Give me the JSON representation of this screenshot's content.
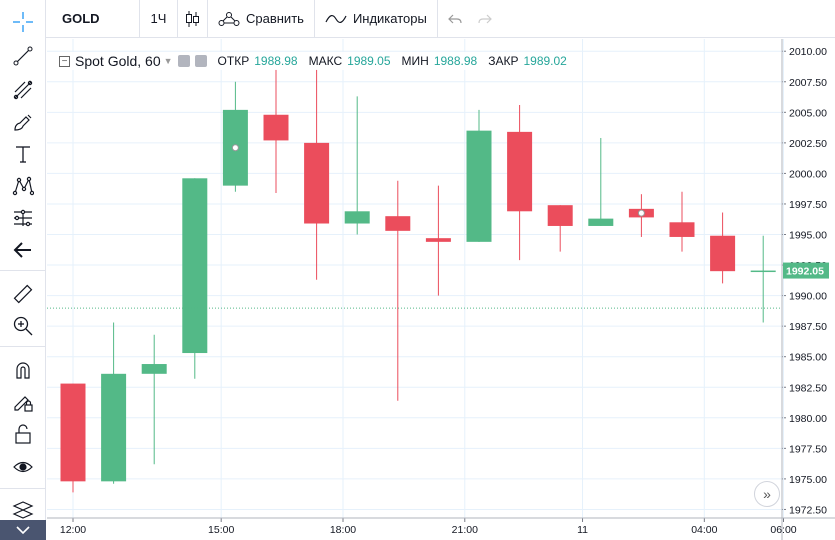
{
  "toolbar": {
    "symbol": "GOLD",
    "resolution": "1Ч",
    "compare_label": "Сравнить",
    "indicators_label": "Индикаторы"
  },
  "legend": {
    "title": "Spot Gold, 60",
    "open_label": "ОТКР",
    "open_value": "1988.98",
    "high_label": "МАКС",
    "high_value": "1989.05",
    "low_label": "МИН",
    "low_value": "1988.98",
    "close_label": "ЗАКР",
    "close_value": "1989.02"
  },
  "sidebar": {
    "icons": [
      "crosshair-icon",
      "trendline-icon",
      "fib-icon",
      "brush-icon",
      "text-icon",
      "pattern-icon",
      "prediction-icon",
      "back-arrow-icon",
      "ruler-icon",
      "zoom-in-icon",
      "magnet-icon",
      "lock-drawing-icon",
      "lock-icon",
      "eye-icon",
      "layers-icon"
    ]
  },
  "colors": {
    "up": "#53b987",
    "down": "#eb4d5c",
    "grid": "#e6f1fb",
    "price_label": "#53b987"
  },
  "current_price": "1992.05",
  "chart_data": {
    "type": "candlestick",
    "x_labels": [
      "12:00",
      "15:00",
      "18:00",
      "21:00",
      "11",
      "04:00",
      "06:00"
    ],
    "y_ticks": [
      "2010.00",
      "2007.50",
      "2005.00",
      "2002.50",
      "2000.00",
      "1997.50",
      "1995.00",
      "1992.50",
      "1990.00",
      "1987.50",
      "1985.00",
      "1982.50",
      "1980.00",
      "1977.50",
      "1975.00",
      "1972.50"
    ],
    "ylim": [
      1971.8,
      2011.0
    ],
    "crosshair_price": 1988.98,
    "candles": [
      {
        "o": 1982.8,
        "h": 1982.8,
        "l": 1973.9,
        "c": 1974.8
      },
      {
        "o": 1974.8,
        "h": 1987.8,
        "l": 1974.6,
        "c": 1983.6
      },
      {
        "o": 1983.6,
        "h": 1986.8,
        "l": 1976.2,
        "c": 1984.4
      },
      {
        "o": 1985.3,
        "h": 1999.6,
        "l": 1983.2,
        "c": 1999.6
      },
      {
        "o": 1999.0,
        "h": 2007.5,
        "l": 1998.5,
        "c": 2005.2
      },
      {
        "o": 2004.8,
        "h": 2008.5,
        "l": 1998.4,
        "c": 2002.7
      },
      {
        "o": 2002.5,
        "h": 2008.5,
        "l": 1991.3,
        "c": 1995.9
      },
      {
        "o": 1995.9,
        "h": 2006.3,
        "l": 1995.0,
        "c": 1996.9
      },
      {
        "o": 1996.5,
        "h": 1999.4,
        "l": 1981.4,
        "c": 1995.3
      },
      {
        "o": 1994.7,
        "h": 1999.0,
        "l": 1990.0,
        "c": 1994.4
      },
      {
        "o": 1994.4,
        "h": 2005.2,
        "l": 1994.4,
        "c": 2003.5
      },
      {
        "o": 2003.4,
        "h": 2005.6,
        "l": 1992.9,
        "c": 1996.9
      },
      {
        "o": 1997.4,
        "h": 1997.4,
        "l": 1993.6,
        "c": 1995.7
      },
      {
        "o": 1995.7,
        "h": 2002.9,
        "l": 1995.7,
        "c": 1996.3
      },
      {
        "o": 1997.1,
        "h": 1998.3,
        "l": 1994.8,
        "c": 1996.4
      },
      {
        "o": 1996.0,
        "h": 1998.5,
        "l": 1993.6,
        "c": 1994.8
      },
      {
        "o": 1994.9,
        "h": 1996.8,
        "l": 1991.0,
        "c": 1992.0
      },
      {
        "o": 1992.0,
        "h": 1994.9,
        "l": 1987.8,
        "c": 1992.05
      }
    ]
  }
}
